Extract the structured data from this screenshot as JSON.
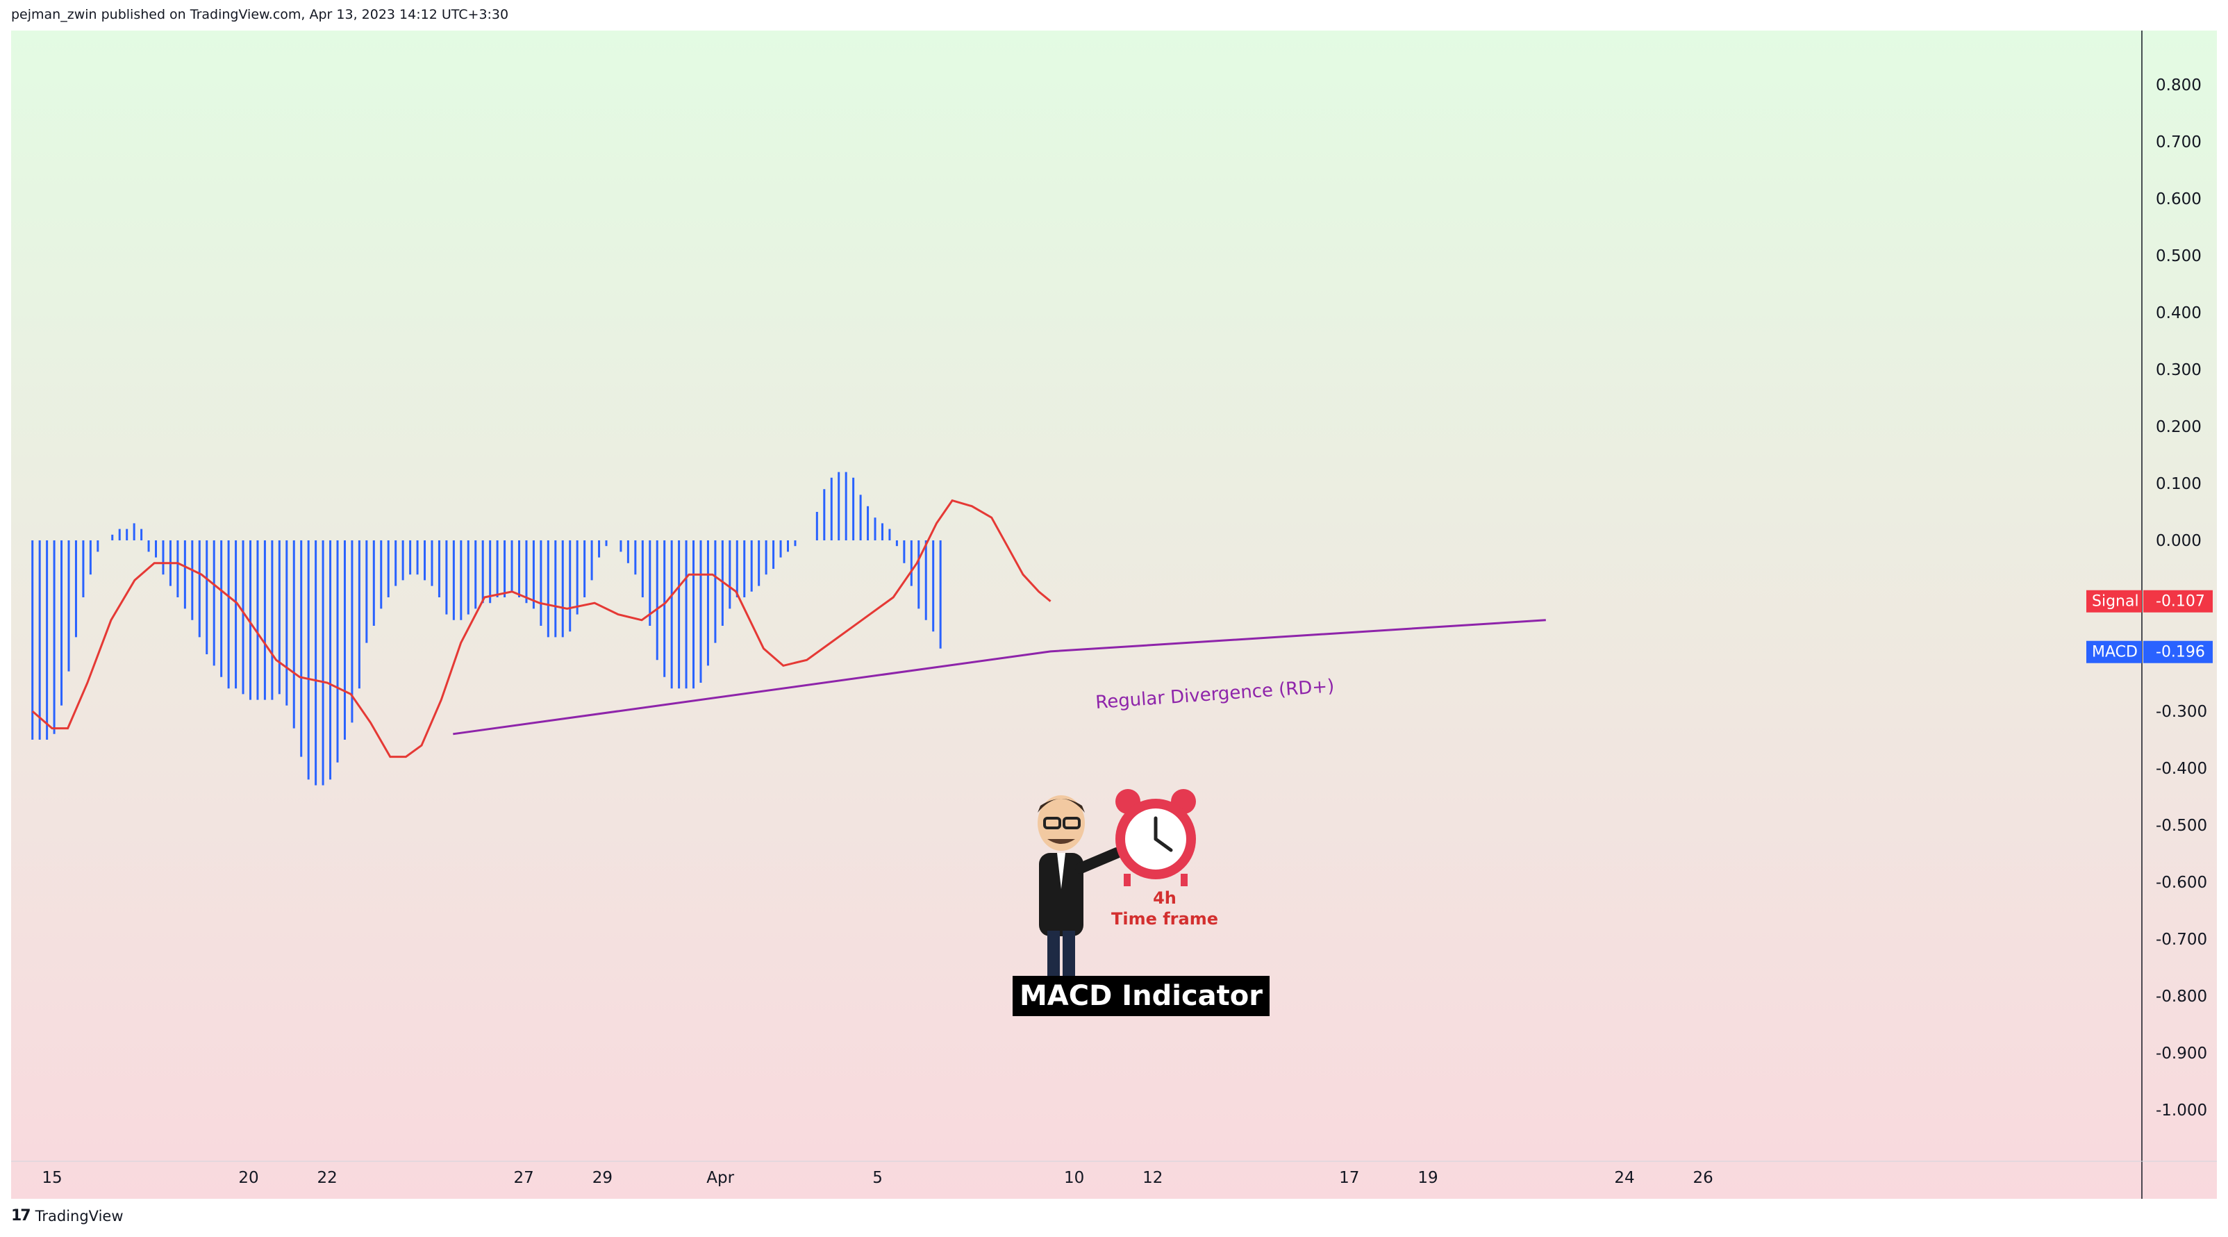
{
  "header": {
    "publisher": "pejman_zwin published on TradingView.com, Apr 13, 2023 14:12 UTC+3:30"
  },
  "footer": {
    "logo_glyph": "17",
    "brand": "TradingView"
  },
  "colors": {
    "background_top": "#e3fbe3",
    "background_bottom": "#f9d9de",
    "histogram": "#2962ff",
    "signal": "#e53935",
    "divergence": "#8e24aa",
    "signal_badge": "#f23645",
    "macd_badge": "#2962ff"
  },
  "annotations": {
    "divergence_label": "Regular Divergence (RD+)",
    "indicator_label": "MACD Indicator",
    "clock_line1": "4h",
    "clock_line2": "Time frame"
  },
  "chart_data": {
    "type": "line",
    "title": "",
    "xlabel": "",
    "ylabel": "",
    "ylim": [
      -1.1,
      0.9
    ],
    "x_range_days": [
      14.5,
      37.6
    ],
    "x_ticks": [
      {
        "day": 15,
        "label": "15"
      },
      {
        "day": 20,
        "label": "20"
      },
      {
        "day": 22,
        "label": "22"
      },
      {
        "day": 27,
        "label": "27"
      },
      {
        "day": 29,
        "label": "29"
      },
      {
        "day": 32,
        "label": "Apr"
      },
      {
        "day": 36,
        "label": "5"
      },
      {
        "day": 41,
        "label": "10"
      },
      {
        "day": 43,
        "label": "12"
      },
      {
        "day": 48,
        "label": "17"
      },
      {
        "day": 50,
        "label": "19"
      },
      {
        "day": 55,
        "label": "24"
      },
      {
        "day": 57,
        "label": "26"
      }
    ],
    "y_ticks": [
      "0.800",
      "0.700",
      "0.600",
      "0.500",
      "0.400",
      "0.300",
      "0.200",
      "0.100",
      "0.000",
      "-0.300",
      "-0.400",
      "-0.500",
      "-0.600",
      "-0.700",
      "-0.800",
      "-0.900",
      "-1.000"
    ],
    "y_tick_values": [
      0.8,
      0.7,
      0.6,
      0.5,
      0.4,
      0.3,
      0.2,
      0.1,
      0.0,
      -0.3,
      -0.4,
      -0.5,
      -0.6,
      -0.7,
      -0.8,
      -0.9,
      -1.0
    ],
    "series": [
      {
        "name": "MACD",
        "style": "histogram",
        "values": [
          -0.35,
          -0.35,
          -0.35,
          -0.34,
          -0.29,
          -0.23,
          -0.17,
          -0.1,
          -0.06,
          -0.02,
          0.0,
          0.01,
          0.02,
          0.02,
          0.03,
          0.02,
          -0.02,
          -0.03,
          -0.06,
          -0.08,
          -0.1,
          -0.12,
          -0.14,
          -0.17,
          -0.2,
          -0.22,
          -0.24,
          -0.26,
          -0.26,
          -0.27,
          -0.28,
          -0.28,
          -0.28,
          -0.28,
          -0.27,
          -0.29,
          -0.33,
          -0.38,
          -0.42,
          -0.43,
          -0.43,
          -0.42,
          -0.39,
          -0.35,
          -0.32,
          -0.26,
          -0.18,
          -0.15,
          -0.12,
          -0.1,
          -0.08,
          -0.07,
          -0.06,
          -0.06,
          -0.07,
          -0.08,
          -0.1,
          -0.13,
          -0.14,
          -0.14,
          -0.13,
          -0.12,
          -0.11,
          -0.11,
          -0.1,
          -0.1,
          -0.09,
          -0.1,
          -0.11,
          -0.12,
          -0.15,
          -0.17,
          -0.17,
          -0.17,
          -0.16,
          -0.13,
          -0.1,
          -0.07,
          -0.03,
          -0.01,
          0.0,
          -0.02,
          -0.04,
          -0.06,
          -0.1,
          -0.15,
          -0.21,
          -0.24,
          -0.26,
          -0.26,
          -0.26,
          -0.26,
          -0.25,
          -0.22,
          -0.18,
          -0.15,
          -0.12,
          -0.1,
          -0.1,
          -0.09,
          -0.08,
          -0.06,
          -0.05,
          -0.03,
          -0.02,
          -0.01,
          0.0,
          0.0,
          0.05,
          0.09,
          0.11,
          0.12,
          0.12,
          0.11,
          0.08,
          0.06,
          0.04,
          0.03,
          0.02,
          -0.01,
          -0.04,
          -0.08,
          -0.12,
          -0.14,
          -0.16,
          -0.19
        ],
        "last_value": "-0.196"
      },
      {
        "name": "Signal",
        "style": "line",
        "points": [
          [
            14.5,
            -0.3
          ],
          [
            15.0,
            -0.33
          ],
          [
            15.4,
            -0.33
          ],
          [
            15.9,
            -0.25
          ],
          [
            16.5,
            -0.14
          ],
          [
            17.1,
            -0.07
          ],
          [
            17.6,
            -0.04
          ],
          [
            18.2,
            -0.04
          ],
          [
            18.8,
            -0.06
          ],
          [
            19.7,
            -0.11
          ],
          [
            20.2,
            -0.16
          ],
          [
            20.7,
            -0.21
          ],
          [
            21.3,
            -0.24
          ],
          [
            22.0,
            -0.25
          ],
          [
            22.6,
            -0.27
          ],
          [
            23.1,
            -0.32
          ],
          [
            23.6,
            -0.38
          ],
          [
            24.0,
            -0.38
          ],
          [
            24.4,
            -0.36
          ],
          [
            24.9,
            -0.28
          ],
          [
            25.4,
            -0.18
          ],
          [
            26.0,
            -0.1
          ],
          [
            26.7,
            -0.09
          ],
          [
            27.4,
            -0.11
          ],
          [
            28.1,
            -0.12
          ],
          [
            28.8,
            -0.11
          ],
          [
            29.4,
            -0.13
          ],
          [
            30.0,
            -0.14
          ],
          [
            30.6,
            -0.11
          ],
          [
            31.2,
            -0.06
          ],
          [
            31.8,
            -0.06
          ],
          [
            32.4,
            -0.09
          ],
          [
            33.1,
            -0.19
          ],
          [
            33.6,
            -0.22
          ],
          [
            34.2,
            -0.21
          ],
          [
            34.8,
            -0.18
          ],
          [
            35.6,
            -0.14
          ],
          [
            36.4,
            -0.1
          ],
          [
            37.0,
            -0.04
          ],
          [
            37.5,
            0.03
          ],
          [
            37.9,
            0.07
          ],
          [
            38.4,
            0.06
          ],
          [
            38.9,
            0.04
          ],
          [
            39.3,
            -0.01
          ],
          [
            39.7,
            -0.06
          ],
          [
            40.1,
            -0.09
          ],
          [
            40.4,
            -0.107
          ]
        ],
        "last_value": "-0.107"
      },
      {
        "name": "Regular Divergence (RD+)",
        "style": "trendline",
        "points": [
          [
            25.2,
            -0.34
          ],
          [
            40.4,
            -0.195
          ],
          [
            53.0,
            -0.14
          ]
        ]
      }
    ],
    "legend_badges": [
      {
        "name": "Signal",
        "value": "-0.107"
      },
      {
        "name": "MACD",
        "value": "-0.196"
      }
    ],
    "grid": false
  }
}
